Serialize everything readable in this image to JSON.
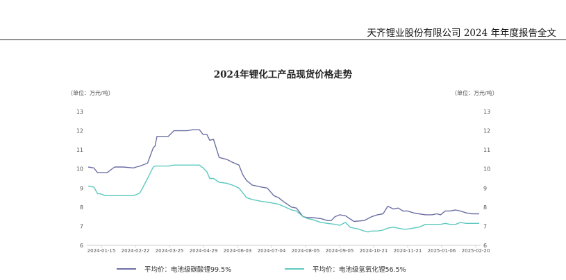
{
  "document": {
    "header": "天齐锂业股份有限公司 2024 年年度报告全文"
  },
  "colors": {
    "series1": "#6b6fa3",
    "series2": "#5cc9be",
    "axis": "#cfcfcf",
    "tick_text": "#555555"
  },
  "chart_data": {
    "type": "line",
    "title": "2024年锂化工产品现货价格走势",
    "unit_left": "（单位：万元/吨）",
    "unit_right": "（单位：万元/吨）",
    "ylim": [
      6,
      13
    ],
    "yticks": [
      "6",
      "7",
      "8",
      "9",
      "10",
      "11",
      "12",
      "13"
    ],
    "x_ticks": [
      "2024-01-15",
      "2024-02-22",
      "2024-03-25",
      "2024-04-29",
      "2024-06-03",
      "2024-07-04",
      "2024-08-05",
      "2024-09-05",
      "2024-10-21",
      "2024-11-21",
      "2025-01-06",
      "2025-02-20"
    ],
    "grid": false,
    "legend_position": "bottom",
    "series": [
      {
        "name": "平均价：电池级碳酸锂99.5%",
        "x": [
          "2024-01-02",
          "2024-01-08",
          "2024-01-12",
          "2024-01-15",
          "2024-01-22",
          "2024-01-30",
          "2024-02-01",
          "2024-02-08",
          "2024-02-19",
          "2024-02-22",
          "2024-02-26",
          "2024-03-05",
          "2024-03-11",
          "2024-03-13",
          "2024-03-15",
          "2024-03-18",
          "2024-03-20",
          "2024-03-27",
          "2024-04-02",
          "2024-04-06",
          "2024-04-16",
          "2024-04-22",
          "2024-04-29",
          "2024-05-03",
          "2024-05-07",
          "2024-05-10",
          "2024-05-14",
          "2024-05-20",
          "2024-05-28",
          "2024-06-03",
          "2024-06-10",
          "2024-06-14",
          "2024-06-18",
          "2024-06-24",
          "2024-07-04",
          "2024-07-10",
          "2024-07-17",
          "2024-07-22",
          "2024-07-27",
          "2024-08-05",
          "2024-08-10",
          "2024-08-17",
          "2024-08-22",
          "2024-08-27",
          "2024-09-05",
          "2024-09-12",
          "2024-09-16",
          "2024-09-20",
          "2024-09-25",
          "2024-10-01",
          "2024-10-10",
          "2024-10-21",
          "2024-10-25",
          "2024-10-29",
          "2024-11-04",
          "2024-11-10",
          "2024-11-15",
          "2024-11-21",
          "2024-11-26",
          "2024-12-01",
          "2024-12-06",
          "2024-12-12",
          "2024-12-18",
          "2024-12-25",
          "2025-01-01",
          "2025-01-06",
          "2025-01-10",
          "2025-01-15",
          "2025-01-20",
          "2025-01-26",
          "2025-01-31",
          "2025-02-06",
          "2025-02-12",
          "2025-02-20"
        ],
        "values": [
          10.1,
          10.05,
          9.8,
          9.8,
          9.8,
          10.1,
          10.1,
          10.1,
          10.05,
          10.1,
          10.15,
          10.3,
          11.1,
          11.2,
          11.7,
          11.7,
          11.7,
          11.7,
          12.0,
          12.0,
          12.0,
          12.05,
          12.05,
          11.8,
          11.8,
          11.5,
          11.55,
          10.6,
          10.5,
          10.35,
          10.2,
          9.7,
          9.4,
          9.15,
          9.05,
          9.0,
          8.6,
          8.5,
          8.3,
          8.0,
          7.95,
          7.5,
          7.45,
          7.45,
          7.4,
          7.3,
          7.3,
          7.5,
          7.6,
          7.55,
          7.25,
          7.3,
          7.4,
          7.5,
          7.6,
          7.65,
          8.05,
          7.9,
          7.95,
          7.8,
          7.8,
          7.7,
          7.65,
          7.6,
          7.6,
          7.65,
          7.6,
          7.8,
          7.8,
          7.85,
          7.8,
          7.7,
          7.65,
          7.65
        ]
      },
      {
        "name": "平均价：电池级氢氧化锂56.5%",
        "x": [
          "2024-01-02",
          "2024-01-08",
          "2024-01-12",
          "2024-01-15",
          "2024-01-20",
          "2024-01-30",
          "2024-02-08",
          "2024-02-19",
          "2024-02-22",
          "2024-02-26",
          "2024-03-05",
          "2024-03-11",
          "2024-03-13",
          "2024-03-15",
          "2024-03-18",
          "2024-03-27",
          "2024-04-02",
          "2024-04-16",
          "2024-04-29",
          "2024-05-03",
          "2024-05-07",
          "2024-05-10",
          "2024-05-14",
          "2024-05-20",
          "2024-05-28",
          "2024-06-03",
          "2024-06-10",
          "2024-06-18",
          "2024-06-24",
          "2024-07-04",
          "2024-07-12",
          "2024-07-17",
          "2024-07-22",
          "2024-07-27",
          "2024-08-05",
          "2024-08-10",
          "2024-08-17",
          "2024-08-22",
          "2024-08-27",
          "2024-09-05",
          "2024-09-12",
          "2024-09-20",
          "2024-09-25",
          "2024-10-01",
          "2024-10-06",
          "2024-10-10",
          "2024-10-15",
          "2024-10-21",
          "2024-10-25",
          "2024-10-29",
          "2024-11-04",
          "2024-11-10",
          "2024-11-15",
          "2024-11-21",
          "2024-11-26",
          "2024-12-01",
          "2024-12-06",
          "2024-12-12",
          "2024-12-18",
          "2024-12-25",
          "2025-01-01",
          "2025-01-06",
          "2025-01-10",
          "2025-01-15",
          "2025-01-20",
          "2025-01-26",
          "2025-01-31",
          "2025-02-06",
          "2025-02-12",
          "2025-02-20"
        ],
        "values": [
          9.1,
          9.05,
          8.7,
          8.7,
          8.6,
          8.6,
          8.6,
          8.6,
          8.65,
          8.75,
          9.5,
          10.1,
          10.15,
          10.15,
          10.15,
          10.15,
          10.2,
          10.2,
          10.2,
          10.05,
          9.85,
          9.5,
          9.5,
          9.3,
          9.25,
          9.15,
          9.0,
          8.5,
          8.4,
          8.3,
          8.25,
          8.2,
          8.15,
          8.05,
          7.85,
          7.8,
          7.5,
          7.4,
          7.35,
          7.2,
          7.15,
          7.1,
          7.05,
          7.2,
          6.95,
          6.9,
          6.85,
          6.75,
          6.7,
          6.75,
          6.75,
          6.8,
          6.9,
          6.95,
          6.9,
          6.85,
          6.85,
          6.9,
          6.95,
          7.1,
          7.1,
          7.1,
          7.1,
          7.15,
          7.1,
          7.1,
          7.2,
          7.15,
          7.15,
          7.15
        ]
      }
    ]
  }
}
